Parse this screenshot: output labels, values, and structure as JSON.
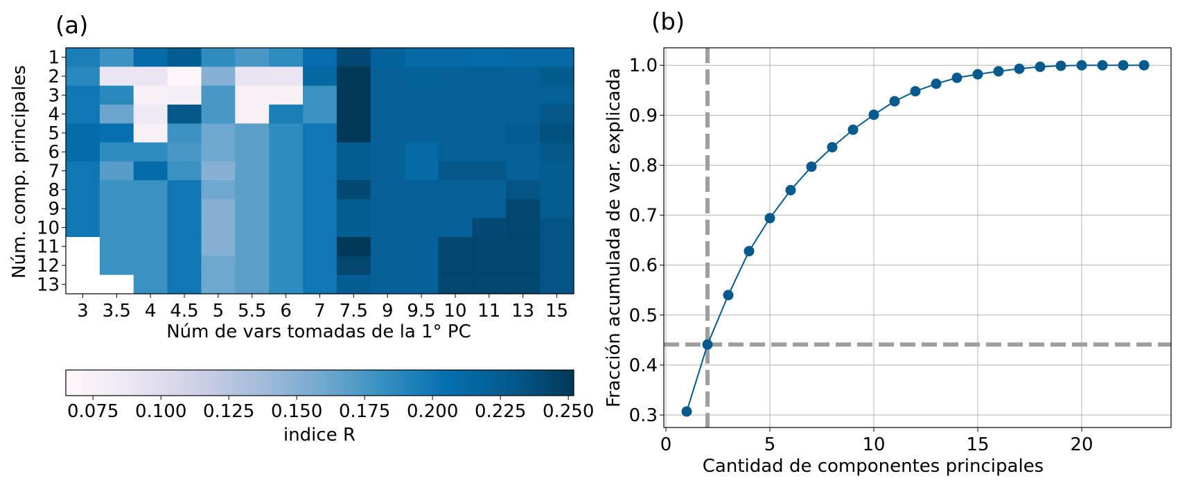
{
  "panel_a": {
    "label": "(a)",
    "xlabel": "Núm de vars tomadas de la 1° PC",
    "ylabel": "Núm. comp. principales",
    "colorbar": {
      "label": "indice R",
      "ticks": [
        "0.075",
        "0.100",
        "0.125",
        "0.150",
        "0.175",
        "0.200",
        "0.225",
        "0.250"
      ],
      "range": [
        0.065,
        0.252
      ],
      "colormap": "PuBu",
      "colors": [
        "#fff7fb",
        "#ece7f2",
        "#d0d1e6",
        "#a6bddb",
        "#74a9cf",
        "#3690c0",
        "#0570b0",
        "#045a8d",
        "#023858"
      ]
    }
  },
  "panel_b": {
    "label": "(b)",
    "xlabel": "Cantidad de componentes principales",
    "ylabel": "Fracción acumulada de var. explicada",
    "marker_color": "#045a8d",
    "reference_color": "#9e9e9e"
  },
  "chart_data": [
    {
      "type": "heatmap",
      "x_categories": [
        "3",
        "3.5",
        "4",
        "4.5",
        "5",
        "5.5",
        "6",
        "7",
        "7.5",
        "9",
        "9.5",
        "10",
        "11",
        "13",
        "15"
      ],
      "y_categories": [
        "1",
        "2",
        "3",
        "4",
        "5",
        "6",
        "7",
        "8",
        "9",
        "10",
        "11",
        "12",
        "13"
      ],
      "values": [
        [
          0.195,
          0.18,
          0.21,
          0.225,
          0.185,
          0.175,
          0.185,
          0.208,
          0.24,
          0.22,
          0.212,
          0.212,
          0.21,
          0.212,
          0.212
        ],
        [
          0.188,
          0.09,
          0.09,
          0.068,
          0.15,
          0.092,
          0.09,
          0.214,
          0.252,
          0.222,
          0.22,
          0.222,
          0.222,
          0.222,
          0.228
        ],
        [
          0.2,
          0.188,
          0.075,
          0.078,
          0.175,
          0.075,
          0.075,
          0.18,
          0.252,
          0.222,
          0.222,
          0.222,
          0.222,
          0.222,
          0.222
        ],
        [
          0.2,
          0.162,
          0.085,
          0.23,
          0.175,
          0.075,
          0.195,
          0.18,
          0.252,
          0.222,
          0.222,
          0.222,
          0.222,
          0.222,
          0.23
        ],
        [
          0.21,
          0.205,
          0.075,
          0.18,
          0.16,
          0.168,
          0.185,
          0.2,
          0.252,
          0.222,
          0.222,
          0.222,
          0.222,
          0.225,
          0.235
        ],
        [
          0.21,
          0.185,
          0.185,
          0.175,
          0.16,
          0.168,
          0.185,
          0.2,
          0.226,
          0.222,
          0.212,
          0.222,
          0.222,
          0.222,
          0.23
        ],
        [
          0.2,
          0.17,
          0.21,
          0.18,
          0.15,
          0.168,
          0.185,
          0.2,
          0.226,
          0.222,
          0.212,
          0.23,
          0.23,
          0.222,
          0.226
        ],
        [
          0.2,
          0.18,
          0.18,
          0.2,
          0.16,
          0.168,
          0.185,
          0.2,
          0.24,
          0.222,
          0.222,
          0.222,
          0.222,
          0.232,
          0.226
        ],
        [
          0.2,
          0.18,
          0.18,
          0.2,
          0.15,
          0.168,
          0.185,
          0.2,
          0.226,
          0.222,
          0.222,
          0.222,
          0.222,
          0.242,
          0.226
        ],
        [
          0.2,
          0.18,
          0.18,
          0.2,
          0.15,
          0.168,
          0.185,
          0.2,
          0.226,
          0.222,
          0.222,
          0.222,
          0.24,
          0.242,
          0.232
        ],
        [
          null,
          0.18,
          0.18,
          0.2,
          0.15,
          0.168,
          0.185,
          0.2,
          0.252,
          0.222,
          0.222,
          0.242,
          0.242,
          0.242,
          0.232
        ],
        [
          null,
          0.18,
          0.18,
          0.2,
          0.16,
          0.168,
          0.185,
          0.2,
          0.242,
          0.222,
          0.222,
          0.242,
          0.242,
          0.242,
          0.232
        ],
        [
          null,
          null,
          0.18,
          0.2,
          0.16,
          0.168,
          0.185,
          0.2,
          0.226,
          0.222,
          0.222,
          0.242,
          0.242,
          0.242,
          0.232
        ]
      ],
      "vmin": 0.065,
      "vmax": 0.252
    },
    {
      "type": "line",
      "x": [
        1,
        2,
        3,
        4,
        5,
        6,
        7,
        8,
        9,
        10,
        11,
        12,
        13,
        14,
        15,
        16,
        17,
        18,
        19,
        20,
        21,
        22,
        23
      ],
      "y": [
        0.307,
        0.441,
        0.54,
        0.628,
        0.694,
        0.75,
        0.797,
        0.836,
        0.871,
        0.901,
        0.928,
        0.948,
        0.963,
        0.975,
        0.982,
        0.988,
        0.993,
        0.997,
        0.999,
        1.0,
        1.0,
        1.0,
        1.0
      ],
      "xlim": [
        -0.1,
        24.3
      ],
      "ylim": [
        0.275,
        1.035
      ],
      "xticks": [
        0,
        5,
        10,
        15,
        20
      ],
      "yticks": [
        0.3,
        0.4,
        0.5,
        0.6,
        0.7,
        0.8,
        0.9,
        1.0
      ],
      "ytick_labels": [
        "0.3",
        "0.4",
        "0.5",
        "0.6",
        "0.7",
        "0.8",
        "0.9",
        "1.0"
      ],
      "grid": true,
      "reference_lines": {
        "x": 2,
        "y": 0.441
      }
    }
  ]
}
